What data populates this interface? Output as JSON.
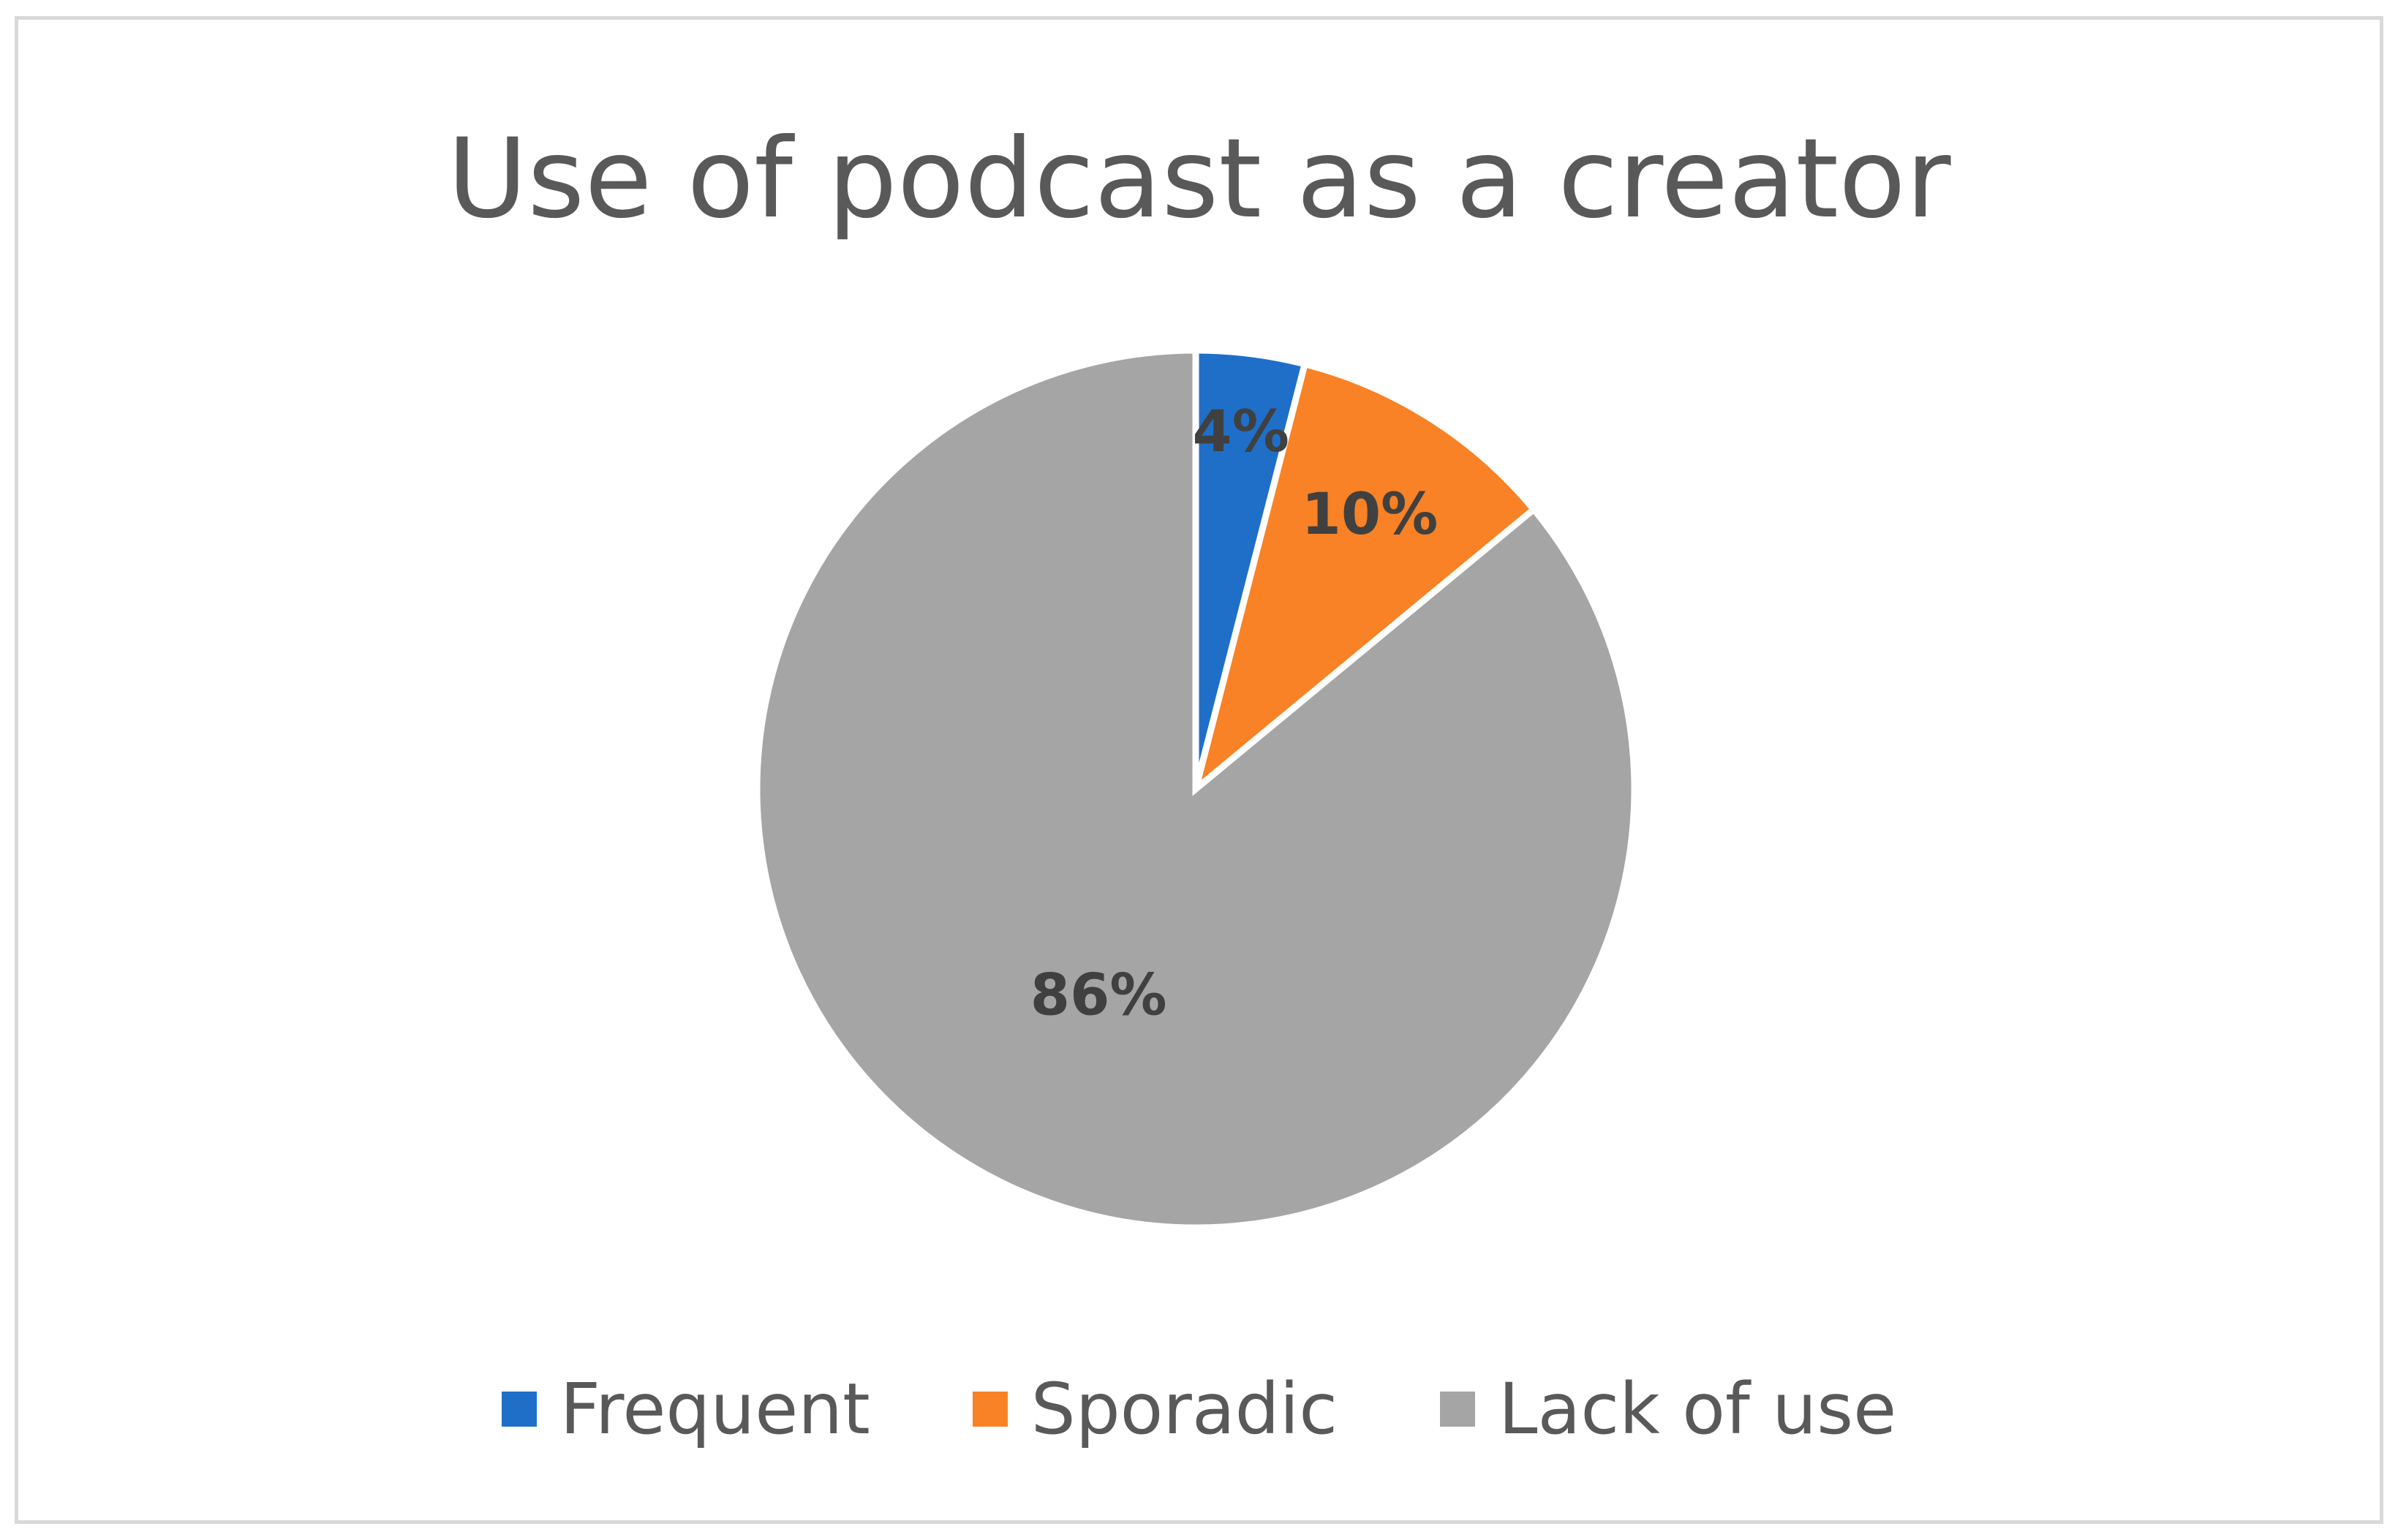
{
  "chart_data": {
    "type": "pie",
    "title": "Use of podcast as a creator",
    "categories": [
      "Frequent",
      "Sporadic",
      "Lack of use"
    ],
    "values": [
      4,
      10,
      86
    ],
    "data_labels": [
      "4%",
      "10%",
      "86%"
    ],
    "colors": [
      "#1f6fc8",
      "#f88225",
      "#a5a5a5"
    ],
    "legend_position": "bottom",
    "label_color": "#404040",
    "start_angle_degrees": 0,
    "direction": "clockwise"
  }
}
